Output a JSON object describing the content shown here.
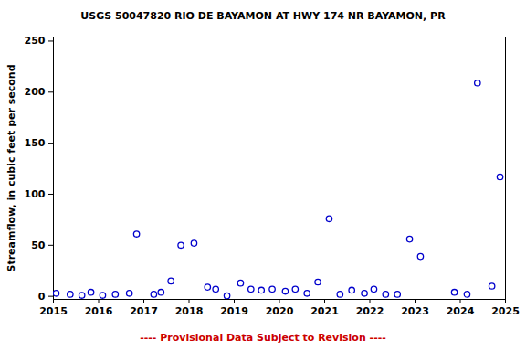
{
  "chart_data": {
    "type": "scatter",
    "title": "USGS 50047820 RIO DE BAYAMON AT HWY 174 NR BAYAMON, PR",
    "caption": "---- Provisional Data Subject to Revision ----",
    "y_label": "Streamflow, in cubic feet per second",
    "x": [
      2015.06,
      2015.37,
      2015.63,
      2015.83,
      2016.09,
      2016.37,
      2016.68,
      2016.84,
      2017.22,
      2017.38,
      2017.6,
      2017.82,
      2018.11,
      2018.41,
      2018.59,
      2018.84,
      2019.14,
      2019.37,
      2019.6,
      2019.84,
      2020.13,
      2020.35,
      2020.61,
      2020.85,
      2021.1,
      2021.34,
      2021.6,
      2021.88,
      2022.09,
      2022.35,
      2022.61,
      2022.88,
      2023.12,
      2023.87,
      2024.15,
      2024.38,
      2024.7,
      2024.88
    ],
    "values": [
      3,
      2,
      1,
      4,
      1,
      2,
      3,
      61,
      2,
      4,
      15,
      50,
      52,
      9,
      7,
      0.5,
      13,
      7,
      6,
      7,
      5,
      7,
      3,
      14,
      76,
      2,
      6,
      3,
      7,
      2,
      2,
      56,
      39,
      4,
      2,
      209,
      10,
      117
    ],
    "color": "#0000cc",
    "marker": "circle",
    "xlim": [
      2015,
      2025
    ],
    "xticks": [
      2015,
      2016,
      2017,
      2018,
      2019,
      2020,
      2021,
      2022,
      2023,
      2024,
      2025
    ],
    "ylim": [
      -3,
      254
    ],
    "yticks": [
      0,
      50,
      100,
      150,
      200,
      250
    ],
    "grid": false
  }
}
